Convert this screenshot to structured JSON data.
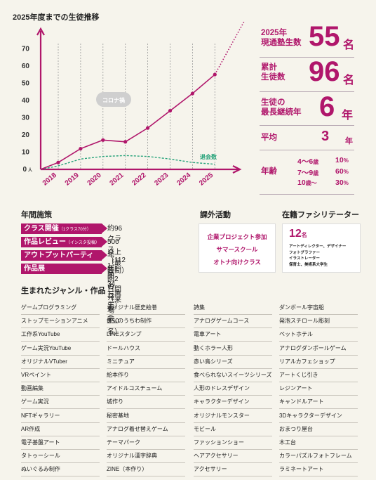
{
  "chart_title": "2025年度までの生徒推移",
  "chart_data": {
    "type": "line",
    "categories": [
      "2018",
      "2019",
      "2020",
      "2021",
      "2022",
      "2023",
      "2024",
      "2025"
    ],
    "series": [
      {
        "name": "",
        "values": [
          4,
          12,
          17,
          16,
          24,
          34,
          44,
          55
        ],
        "color": "#b0166b"
      },
      {
        "name": "退会数",
        "values": [
          2,
          6,
          7.5,
          8,
          7.5,
          6,
          4,
          3
        ],
        "color": "#27a37a",
        "style": "dashed"
      }
    ],
    "projection": {
      "from": 55,
      "to": 88
    },
    "ylim": [
      0,
      75
    ],
    "yticks": [
      0,
      10,
      20,
      30,
      40,
      50,
      60,
      70
    ],
    "y_unit": "人",
    "annotation": "コロナ禍",
    "dropout_label": "退会数"
  },
  "stats": {
    "current": {
      "label_line1": "2025年",
      "label_line2": "現通塾生数",
      "value": "55",
      "unit": "名"
    },
    "total": {
      "label_line1": "累計",
      "label_line2": "生徒数",
      "value": "96",
      "unit": "名"
    },
    "longest": {
      "label_line1": "生徒の",
      "label_line2": "最長継続年",
      "value": "6",
      "unit": "年"
    },
    "average": {
      "label": "平均",
      "value": "3",
      "unit": "年"
    },
    "age": {
      "label": "年齢",
      "rows": [
        {
          "range": "4〜6",
          "unit": "歳",
          "pct": "10",
          "pct_unit": "%"
        },
        {
          "range": "7〜9",
          "unit": "歳",
          "pct": "60",
          "pct_unit": "%"
        },
        {
          "range": "10",
          "unit": "歳〜",
          "pct": "30",
          "pct_unit": "%"
        }
      ]
    }
  },
  "policies": {
    "title": "年間施策",
    "rows": [
      {
        "label": "クラス開催",
        "sub": "（1クラス70分）",
        "value": "約96クラス （112時間）"
      },
      {
        "label": "作品レビュー",
        "sub": "（インスタ投稿）",
        "value": "500以上 （最高34万再生）"
      },
      {
        "label": "アウトプットパーティ",
        "sub": "",
        "value": "年1回の発表会"
      },
      {
        "label": "作品展",
        "sub": "",
        "value": "年1回2日間 （来場250名）"
      }
    ]
  },
  "extracurricular": {
    "title": "課外活動",
    "items": [
      "企業プロジェクト参加",
      "サマースクール",
      "オトナ向けクラス"
    ]
  },
  "facilitators": {
    "title": "在籍ファシリテーター",
    "count": "12",
    "unit": "名",
    "lines": [
      "アートディレクター、デザイナー",
      "フォトグラファー",
      "イラストレーター",
      "保育士、美術系大学生"
    ]
  },
  "genres": {
    "title": "生まれたジャンル・作品",
    "columns": [
      [
        "ゲームプログラミング",
        "ストップモーションアニメ",
        "工作系YouTube",
        "ゲーム実況YouTube",
        "オリジナルVTuber",
        "VRペイント",
        "動画編集",
        "ゲーム実況",
        "NFTギャラリー",
        "AR作成",
        "電子基盤アート",
        "タトゥーシール",
        "ぬいぐるみ制作"
      ],
      [
        "オリジナル歴史絵巻",
        "推しのうちわ制作",
        "LINEスタンプ",
        "ドールハウス",
        "ミニチュア",
        "絵本作り",
        "アイドルコスチューム",
        "城作り",
        "秘密基地",
        "アナログ着せ替えゲーム",
        "テーマパーク",
        "オリジナル漢字辞典",
        "ZINE（本作り）"
      ],
      [
        "詩集",
        "アナログゲームコース",
        "電車アート",
        "動くホラー人形",
        "赤い鳥シリーズ",
        "食べられないスイーツシリーズ",
        "人形のドレスデザイン",
        "キャラクターデザイン",
        "オリジナルモンスター",
        "モビール",
        "ファッションショー",
        "ヘアアクセサリー",
        "アクセサリー"
      ],
      [
        "ダンボール宇宙船",
        "発泡スチロール彫刻",
        "ペットホテル",
        "アナログダンボールゲーム",
        "リアルカフェショップ",
        "アートくじ引き",
        "レジンアート",
        "キャンドルアート",
        "3Dキャラクターデザイン",
        "おまつり屋台",
        "木工台",
        "カラーパズルフォトフレーム",
        "ラミネートアート"
      ]
    ]
  }
}
